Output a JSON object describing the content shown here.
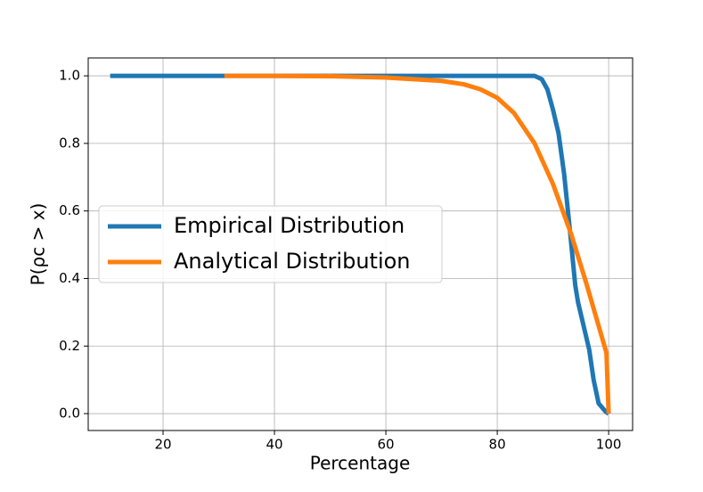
{
  "chart_data": {
    "type": "line",
    "xlabel": "Percentage",
    "ylabel": "P(ρc > x)",
    "xlim": [
      6.56,
      104.3
    ],
    "ylim": [
      -0.05,
      1.053
    ],
    "xticks": [
      20,
      40,
      60,
      80,
      100
    ],
    "yticks": [
      {
        "value": 0,
        "label": "0.0"
      },
      {
        "value": 0.2,
        "label": "0.2"
      },
      {
        "value": 0.4,
        "label": "0.4"
      },
      {
        "value": 0.6,
        "label": "0.6"
      },
      {
        "value": 0.8,
        "label": "0.8"
      },
      {
        "value": 1,
        "label": "1.0"
      }
    ],
    "grid": true,
    "legend": "center left",
    "series": [
      {
        "name": "Empirical Distribution",
        "color": "#1f77b4",
        "x": [
          10.5,
          30,
          50,
          70,
          86.7,
          88,
          89,
          90,
          91,
          92,
          93,
          94,
          94.5,
          95.5,
          96.5,
          97.3,
          98.2,
          99.5,
          100
        ],
        "values": [
          1,
          1,
          1,
          1,
          1,
          0.99,
          0.96,
          0.9,
          0.83,
          0.71,
          0.55,
          0.38,
          0.33,
          0.26,
          0.19,
          0.1,
          0.03,
          0.005,
          0
        ]
      },
      {
        "name": "Analytical Distribution",
        "color": "#ff7f0e",
        "x": [
          31,
          40,
          50,
          60,
          65,
          70,
          74,
          77,
          80,
          83,
          86.7,
          90,
          93.3,
          96,
          99.6,
          100
        ],
        "values": [
          1,
          1,
          0.999,
          0.995,
          0.99,
          0.985,
          0.975,
          0.96,
          0.935,
          0.89,
          0.8,
          0.68,
          0.53,
          0.385,
          0.18,
          0
        ]
      }
    ]
  }
}
